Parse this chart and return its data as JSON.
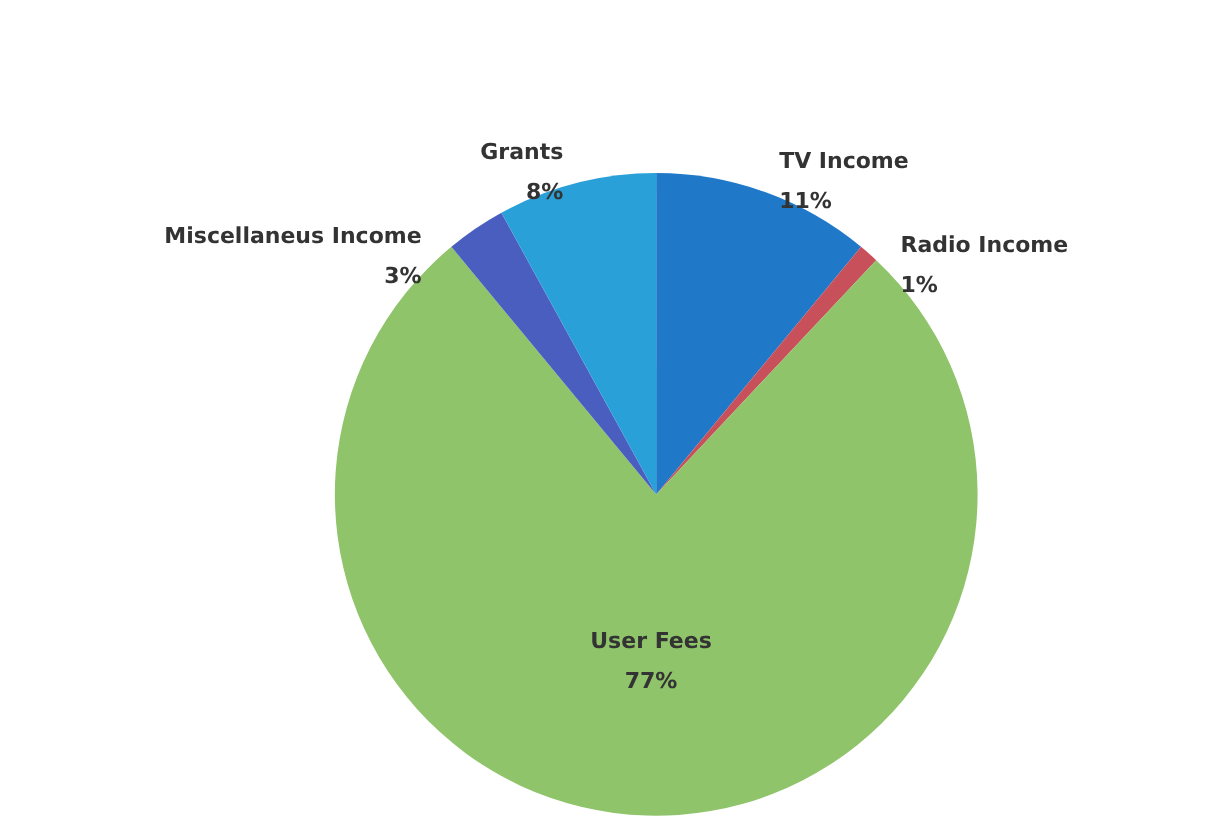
{
  "chart_data": {
    "type": "pie",
    "categories": [
      "TV Income",
      "Radio Income",
      "User Fees",
      "Miscellaneus Income",
      "Grants"
    ],
    "values": [
      11,
      1,
      77,
      3,
      8
    ],
    "value_labels": [
      "11%",
      "1%",
      "77%",
      "3%",
      "8%"
    ],
    "colors": [
      "#1f78c8",
      "#c8505a",
      "#8fc46a",
      "#4a5ec0",
      "#2aa0d8"
    ]
  }
}
